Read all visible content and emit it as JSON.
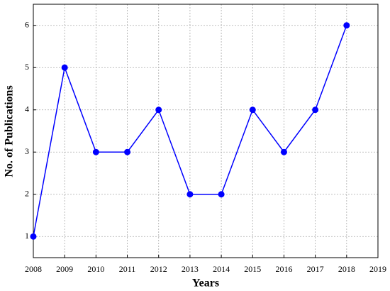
{
  "chart_data": {
    "type": "line",
    "x_label": "Years",
    "y_label": "No. of Publications",
    "x": [
      2008,
      2009,
      2010,
      2011,
      2012,
      2013,
      2014,
      2015,
      2016,
      2017,
      2018
    ],
    "series": [
      {
        "color": "#0000ff",
        "values": [
          1,
          5,
          3,
          3,
          4,
          2,
          2,
          4,
          3,
          4,
          6
        ]
      }
    ],
    "xlim": [
      2008,
      2019
    ],
    "xticks": [
      2008,
      2009,
      2010,
      2011,
      2012,
      2013,
      2014,
      2015,
      2016,
      2017,
      2018,
      2019
    ],
    "ylim": [
      0.5,
      6.5
    ],
    "yticks": [
      1,
      2,
      3,
      4,
      5,
      6
    ],
    "grid": true
  }
}
